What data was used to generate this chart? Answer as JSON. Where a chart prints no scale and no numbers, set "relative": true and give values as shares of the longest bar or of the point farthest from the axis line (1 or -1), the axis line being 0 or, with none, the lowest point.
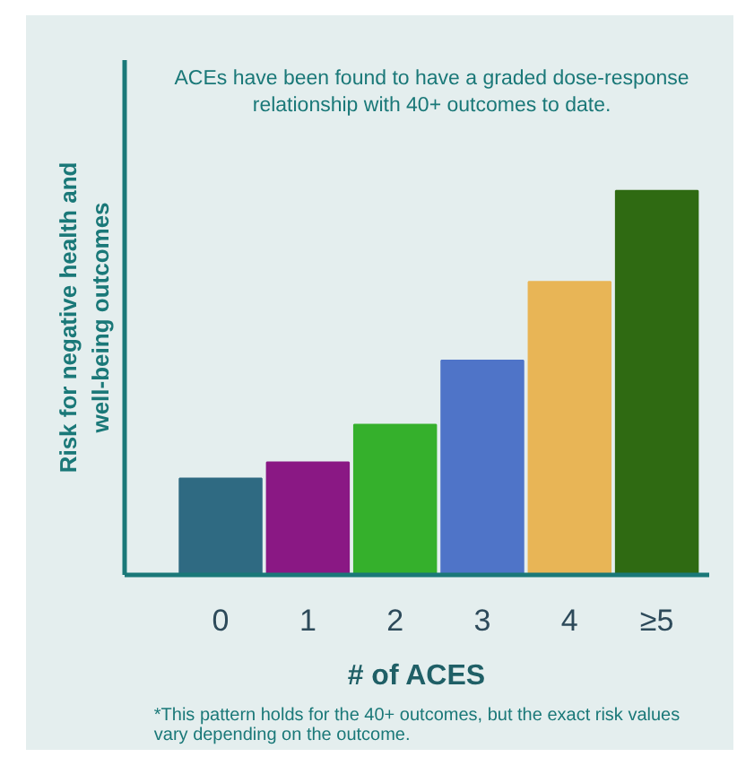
{
  "chart_data": {
    "type": "bar",
    "relative": true,
    "title": "ACEs have been found to have a graded dose-response\nrelationship with 40+ outcomes to date.",
    "xlabel": "# of ACES",
    "ylabel": "Risk for negative health and\nwell-being outcomes",
    "categories": [
      "0",
      "1",
      "2",
      "3",
      "4",
      "≥5"
    ],
    "values": [
      0.251,
      0.293,
      0.391,
      0.558,
      0.763,
      1.0
    ],
    "colors": [
      "#2f6a82",
      "#8a1884",
      "#35b02c",
      "#4f74c8",
      "#e8b556",
      "#2f6a12"
    ],
    "annotations": [
      "*This pattern holds for the 40+ outcomes, but the exact risk values\nvary depending on the outcome."
    ]
  }
}
